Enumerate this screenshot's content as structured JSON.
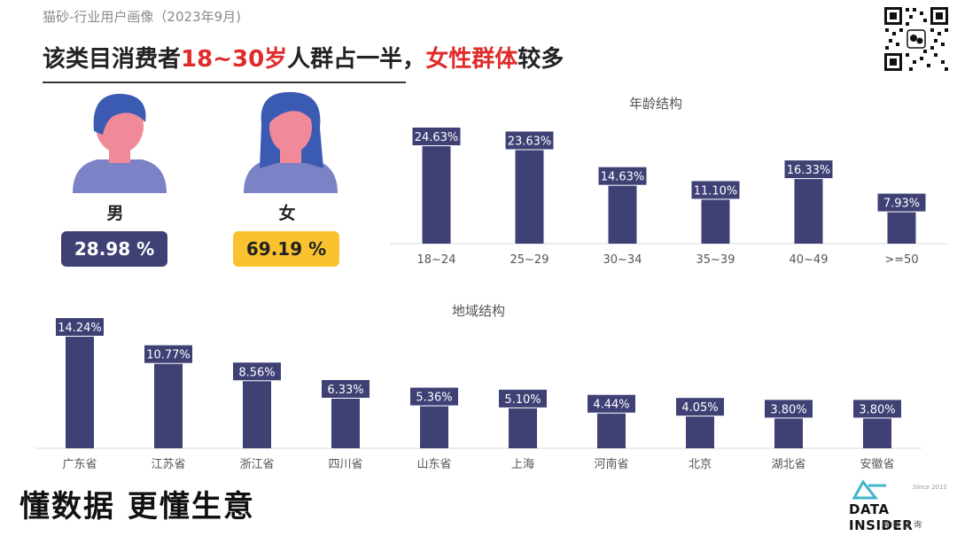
{
  "header": {
    "subtitle": "猫砂-行业用户画像（2023年9月)",
    "headline_part1": "该类目消费者",
    "headline_highlight1": "18~30岁",
    "headline_part2": "人群占一半，",
    "headline_highlight2": "女性群体",
    "headline_part3": "较多"
  },
  "gender": {
    "male_label": "男",
    "male_pct": "28.98 %",
    "female_label": "女",
    "female_pct": "69.19 %"
  },
  "colors": {
    "bar": "#3f4175",
    "accent_red": "#e02b2b",
    "accent_yellow": "#f9c22e",
    "logo_teal": "#3fb6c8"
  },
  "footer": {
    "slogan": "懂数据 更懂生意",
    "logo_text": "DATA INSIDER",
    "logo_sub": "解数咨询"
  },
  "chart_data": [
    {
      "type": "bar",
      "title": "年龄结构",
      "categories": [
        "18~24",
        "25~29",
        "30~34",
        "35~39",
        "40~49",
        ">=50"
      ],
      "values": [
        24.63,
        23.63,
        14.63,
        11.1,
        16.33,
        7.93
      ],
      "labels": [
        "24.63%",
        "23.63%",
        "14.63%",
        "11.10%",
        "16.33%",
        "7.93%"
      ],
      "unit": "%"
    },
    {
      "type": "bar",
      "title": "地域结构",
      "categories": [
        "广东省",
        "江苏省",
        "浙江省",
        "四川省",
        "山东省",
        "上海",
        "河南省",
        "北京",
        "湖北省",
        "安徽省"
      ],
      "values": [
        14.24,
        10.77,
        8.56,
        6.33,
        5.36,
        5.1,
        4.44,
        4.05,
        3.8,
        3.8
      ],
      "labels": [
        "14.24%",
        "10.77%",
        "8.56%",
        "6.33%",
        "5.36%",
        "5.10%",
        "4.44%",
        "4.05%",
        "3.80%",
        "3.80%"
      ],
      "unit": "%"
    }
  ]
}
